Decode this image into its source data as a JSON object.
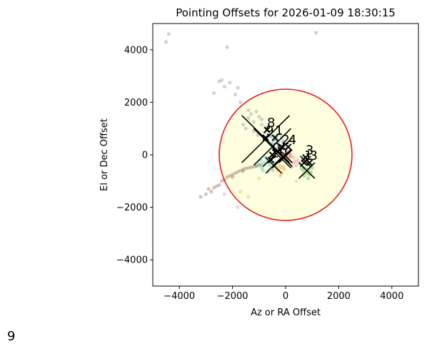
{
  "chart_data": {
    "type": "scatter",
    "title": "Pointing Offsets for 2026-01-09 18:30:15",
    "xlabel": "Az or RA Offset",
    "ylabel": "El or Dec Offset",
    "xlim": [
      -5000,
      5000
    ],
    "ylim": [
      -5000,
      5000
    ],
    "xticks": [
      -4000,
      -2000,
      0,
      2000,
      4000
    ],
    "yticks": [
      -4000,
      -2000,
      0,
      2000,
      4000
    ],
    "xtick_labels": [
      "−4000",
      "−2000",
      "0",
      "2000",
      "4000"
    ],
    "ytick_labels": [
      "−4000",
      "−2000",
      "0",
      "2000",
      "4000"
    ],
    "grid": false,
    "legend": "none",
    "tolerance_circle": {
      "center": [
        0,
        0
      ],
      "radius": 2500,
      "edge_color": "#e41a1c",
      "fill_color": "#ffffe0"
    },
    "series": [
      {
        "color": "#1f77b4",
        "points": [
          [
            -400,
            700
          ],
          [
            -300,
            500
          ],
          [
            -500,
            400
          ],
          [
            -200,
            800
          ],
          [
            -350,
            600
          ],
          [
            -450,
            550
          ],
          [
            -250,
            350
          ],
          [
            -150,
            650
          ],
          [
            -600,
            450
          ],
          [
            -300,
            250
          ],
          [
            -100,
            500
          ],
          [
            -550,
            700
          ]
        ]
      },
      {
        "color": "#ff7f0e",
        "points": [
          [
            -200,
            -500
          ],
          [
            -100,
            -450
          ],
          [
            -300,
            -600
          ],
          [
            -150,
            -700
          ],
          [
            -250,
            -400
          ],
          [
            -50,
            -550
          ],
          [
            -350,
            -500
          ],
          [
            -200,
            -800
          ]
        ]
      },
      {
        "color": "#2ca02c",
        "points": [
          [
            600,
            -300
          ],
          [
            700,
            -500
          ],
          [
            800,
            -700
          ],
          [
            900,
            -400
          ],
          [
            750,
            -200
          ],
          [
            650,
            -600
          ],
          [
            850,
            -550
          ],
          [
            950,
            -650
          ],
          [
            700,
            -800
          ],
          [
            800,
            -300
          ],
          [
            600,
            -500
          ],
          [
            1000,
            -500
          ],
          [
            900,
            -750
          ],
          [
            700,
            -100
          ],
          [
            850,
            -900
          ]
        ]
      },
      {
        "color": "#d62728",
        "points": [
          [
            0,
            0
          ],
          [
            100,
            -100
          ],
          [
            -100,
            50
          ],
          [
            150,
            50
          ],
          [
            50,
            -200
          ],
          [
            -50,
            -100
          ],
          [
            200,
            -50
          ]
        ]
      },
      {
        "color": "#9467bd",
        "points": [
          [
            -100,
            300
          ],
          [
            0,
            250
          ],
          [
            -200,
            200
          ],
          [
            50,
            150
          ],
          [
            -150,
            350
          ]
        ]
      },
      {
        "color": "#8c564b",
        "points": [
          [
            -2800,
            -1400
          ],
          [
            -2600,
            -1200
          ],
          [
            -2400,
            -1000
          ],
          [
            -2200,
            -850
          ],
          [
            -2000,
            -750
          ],
          [
            -1800,
            -650
          ],
          [
            -1600,
            -550
          ],
          [
            -1400,
            -500
          ],
          [
            -1200,
            -450
          ],
          [
            -1000,
            -400
          ],
          [
            -3000,
            -1500
          ],
          [
            -3200,
            -1600
          ],
          [
            -2900,
            -1300
          ],
          [
            -2500,
            -1150
          ],
          [
            -2300,
            -950
          ],
          [
            -2100,
            -800
          ],
          [
            -1900,
            -700
          ],
          [
            -1700,
            -600
          ],
          [
            -1500,
            -520
          ],
          [
            -1300,
            -480
          ],
          [
            -1100,
            -420
          ],
          [
            -900,
            -380
          ],
          [
            -2700,
            -1250
          ],
          [
            -2000,
            -850
          ],
          [
            -1600,
            -620
          ]
        ]
      },
      {
        "color": "#e377c2",
        "points": [
          [
            200,
            -300
          ],
          [
            300,
            -100
          ],
          [
            400,
            -400
          ],
          [
            350,
            -250
          ],
          [
            450,
            -200
          ],
          [
            250,
            -450
          ],
          [
            500,
            -300
          ],
          [
            -1800,
            -2000
          ],
          [
            -2300,
            -1500
          ]
        ]
      },
      {
        "color": "#7f7f7f",
        "points": [
          [
            -4500,
            4300
          ],
          [
            -4400,
            4600
          ],
          [
            -1100,
            1650
          ],
          [
            -1300,
            1550
          ],
          [
            -900,
            1350
          ],
          [
            -1200,
            1250
          ],
          [
            -1600,
            1150
          ],
          [
            -1000,
            1450
          ],
          [
            -1500,
            1000
          ],
          [
            -1400,
            1700
          ],
          [
            -2300,
            2600
          ],
          [
            -1700,
            2000
          ],
          [
            -2400,
            2850
          ],
          [
            -2500,
            2800
          ],
          [
            -1800,
            2550
          ],
          [
            -1900,
            2300
          ],
          [
            -2700,
            2350
          ],
          [
            -2200,
            4100
          ],
          [
            -2100,
            2750
          ],
          [
            -900,
            1150
          ],
          [
            -1200,
            900
          ],
          [
            -1050,
            750
          ],
          [
            -1400,
            1400
          ],
          [
            -700,
            1050
          ],
          [
            -800,
            850
          ],
          [
            1150,
            4650
          ]
        ]
      },
      {
        "color": "#bcbd22",
        "points": [
          [
            -1400,
            -1600
          ],
          [
            -1700,
            -1400
          ],
          [
            -1000,
            -900
          ],
          [
            -500,
            -600
          ],
          [
            -200,
            -200
          ],
          [
            300,
            -300
          ],
          [
            400,
            -1000
          ]
        ]
      },
      {
        "color": "#17becf",
        "points": [
          [
            -800,
            -300
          ],
          [
            -900,
            -500
          ],
          [
            -700,
            -200
          ],
          [
            -1000,
            -350
          ],
          [
            -600,
            -400
          ],
          [
            -850,
            -600
          ],
          [
            -750,
            -100
          ],
          [
            -500,
            -550
          ],
          [
            -950,
            -200
          ],
          [
            -650,
            -650
          ],
          [
            -1100,
            -450
          ],
          [
            -400,
            -300
          ]
        ]
      }
    ],
    "centroids": [
      {
        "label": "8",
        "x": -700,
        "y": 950
      },
      {
        "label": "1",
        "x": -400,
        "y": 650
      },
      {
        "label": "9",
        "x": -750,
        "y": 650
      },
      {
        "label": "2",
        "x": -150,
        "y": 300
      },
      {
        "label": "4",
        "x": 100,
        "y": 300
      },
      {
        "label": "10",
        "x": -550,
        "y": -200
      },
      {
        "label": "0",
        "x": -500,
        "y": 0
      },
      {
        "label": "3",
        "x": 750,
        "y": -100
      },
      {
        "label": "1",
        "x": 700,
        "y": -300
      },
      {
        "label": "3",
        "x": 900,
        "y": -300
      }
    ],
    "crosses": [
      {
        "x": -750,
        "y": 600,
        "size": 900
      },
      {
        "x": -500,
        "y": 300,
        "size": 700
      },
      {
        "x": -300,
        "y": 100,
        "size": 550
      },
      {
        "x": -150,
        "y": -150,
        "size": 350
      },
      {
        "x": -450,
        "y": -400,
        "size": 300
      },
      {
        "x": 0,
        "y": -50,
        "size": 250
      },
      {
        "x": 800,
        "y": -600,
        "size": 300
      },
      {
        "x": 750,
        "y": -250,
        "size": 200
      }
    ]
  },
  "corner_text": "9"
}
